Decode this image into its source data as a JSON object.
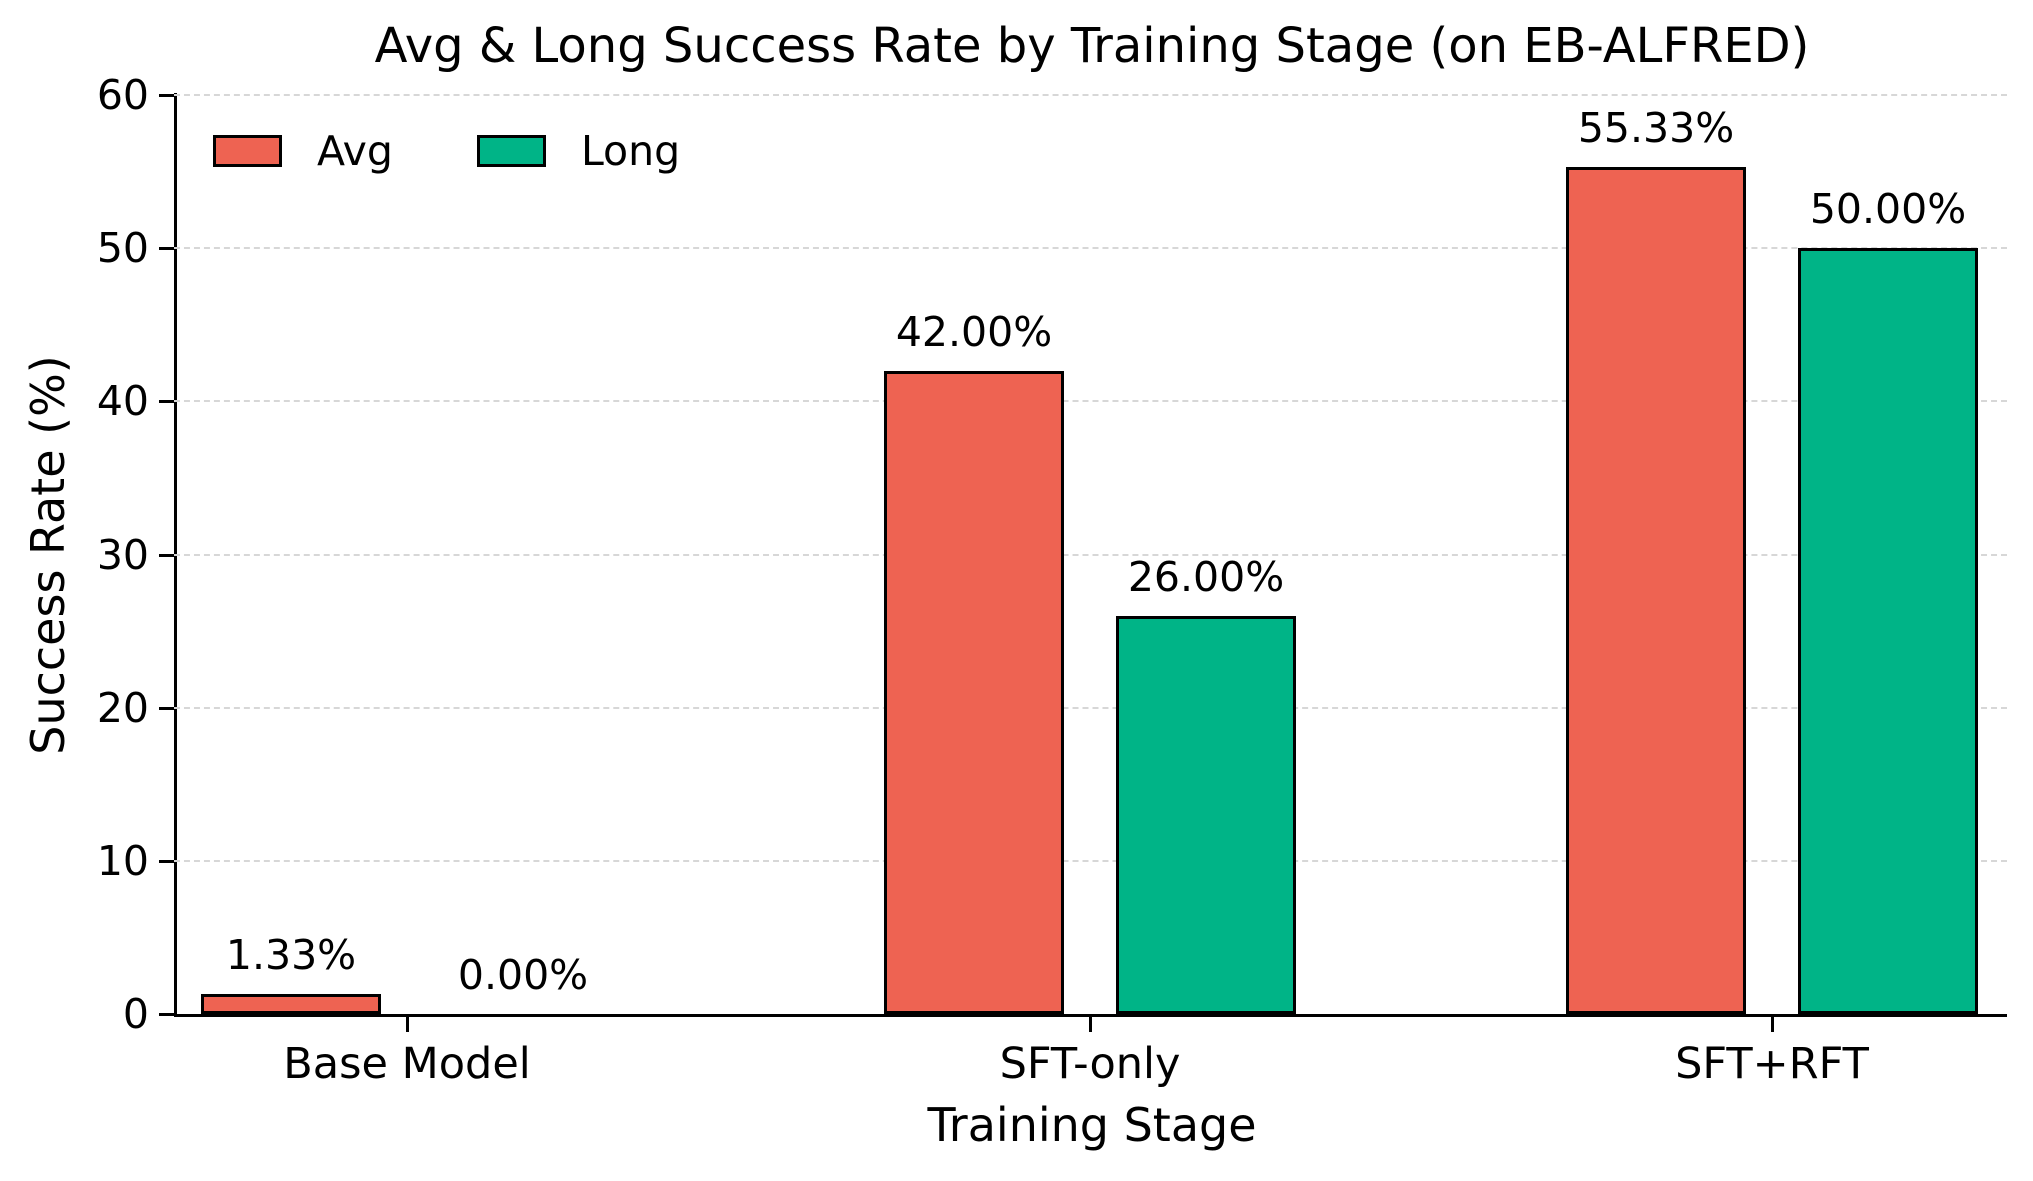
{
  "chart_data": {
    "type": "bar",
    "title": "Avg & Long Success Rate by Training Stage (on EB-ALFRED)",
    "xlabel": "Training Stage",
    "ylabel": "Success Rate (%)",
    "categories": [
      "Base Model",
      "SFT-only",
      "SFT+RFT"
    ],
    "series": [
      {
        "name": "Avg",
        "color": "#EE6352",
        "values": [
          1.33,
          42.0,
          55.33
        ],
        "value_labels": [
          "1.33%",
          "42.00%",
          "55.33%"
        ]
      },
      {
        "name": "Long",
        "color": "#00B487",
        "values": [
          0.0,
          26.0,
          50.0
        ],
        "value_labels": [
          "0.00%",
          "26.00%",
          "50.00%"
        ]
      }
    ],
    "ylim": [
      0,
      60
    ],
    "yticks": [
      0,
      10,
      20,
      30,
      40,
      50,
      60
    ],
    "grid": "horizontal-dashed",
    "gridline_color": "#d7d7d7",
    "bar_edge_color": "#000000",
    "axis_color": "#000000",
    "legend_position": "upper-left",
    "legend_entries": [
      "Avg",
      "Long"
    ]
  }
}
